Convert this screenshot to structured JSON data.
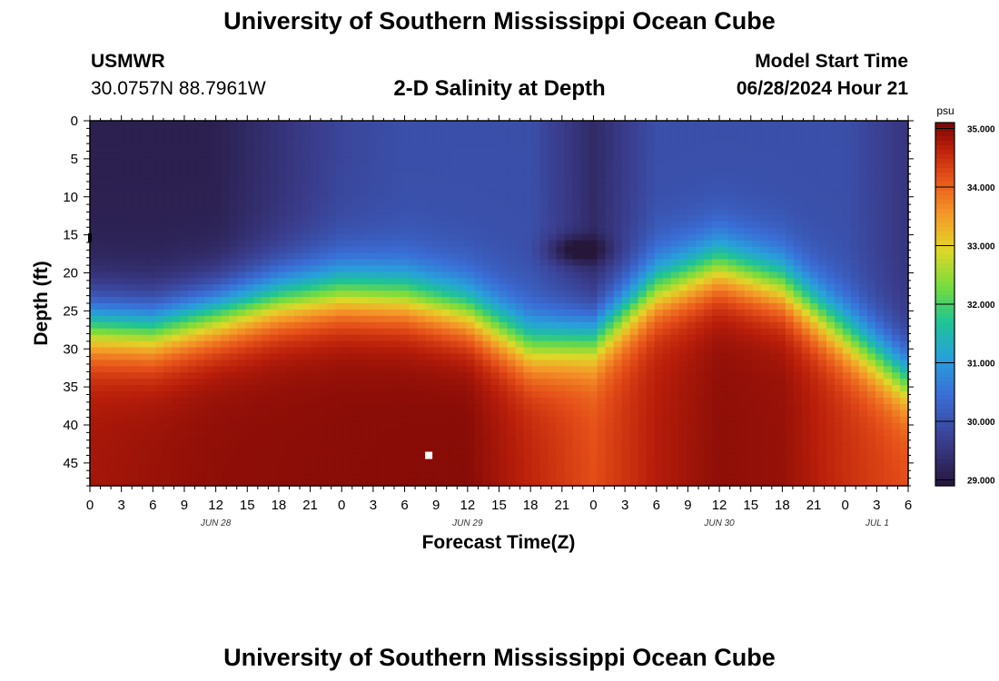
{
  "header": {
    "title": "University of Southern Mississippi Ocean Cube",
    "station": "USMWR",
    "coords": "30.0757N  88.7961W",
    "subtitle": "2-D Salinity at Depth",
    "model_label": "Model Start Time",
    "model_time": "06/28/2024 Hour 21"
  },
  "footer": {
    "title": "University of Southern Mississippi Ocean Cube"
  },
  "chart_data": {
    "type": "heatmap",
    "title": "2-D Salinity at Depth",
    "xlabel": "Forecast Time(Z)",
    "ylabel": "Depth (ft)",
    "x_range_hours": [
      0,
      78
    ],
    "x_ticks": [
      "0",
      "3",
      "6",
      "9",
      "12",
      "15",
      "18",
      "21",
      "0",
      "3",
      "6",
      "9",
      "12",
      "15",
      "18",
      "21",
      "0",
      "3",
      "6",
      "9",
      "12",
      "15",
      "18",
      "21",
      "0",
      "3",
      "6"
    ],
    "date_labels": [
      {
        "text": "JUN 28",
        "hour": 12
      },
      {
        "text": "JUN 29",
        "hour": 36
      },
      {
        "text": "JUN 30",
        "hour": 60
      },
      {
        "text": "JUL 1",
        "hour": 84
      }
    ],
    "y_range_ft": [
      0,
      48
    ],
    "y_ticks": [
      "0",
      "5",
      "10",
      "15",
      "20",
      "25",
      "30",
      "35",
      "40",
      "45"
    ],
    "colorbar": {
      "unit": "psu",
      "min": 28.9,
      "max": 35.1,
      "ticks": [
        "35.000",
        "34.000",
        "33.000",
        "32.000",
        "31.000",
        "30.000",
        "29.000"
      ]
    },
    "halocline_depth_ft": {
      "hours": [
        0,
        6,
        12,
        18,
        24,
        30,
        36,
        42,
        48,
        54,
        60,
        66,
        72,
        78
      ],
      "depth": [
        27,
        27.5,
        25.5,
        23.5,
        22.5,
        23,
        25,
        29.5,
        28.5,
        22,
        19,
        21.5,
        28,
        34
      ]
    },
    "surface_salinity_psu": {
      "hours": [
        0,
        12,
        24,
        30,
        36,
        42,
        48,
        54,
        60,
        66,
        72,
        78
      ],
      "values": [
        29.1,
        29.1,
        29.8,
        29.95,
        29.95,
        29.95,
        29.3,
        29.95,
        29.95,
        29.95,
        29.95,
        29.5
      ]
    },
    "deep_salinity_psu": {
      "hours": [
        0,
        12,
        24,
        36,
        42,
        48,
        54,
        60,
        66,
        72,
        78
      ],
      "values": [
        34.8,
        34.95,
        34.98,
        35.0,
        34.6,
        34.2,
        34.7,
        34.95,
        34.9,
        34.5,
        34.2
      ]
    },
    "markers": [
      {
        "hour": 32.3,
        "depth_ft": 44.0
      }
    ]
  }
}
